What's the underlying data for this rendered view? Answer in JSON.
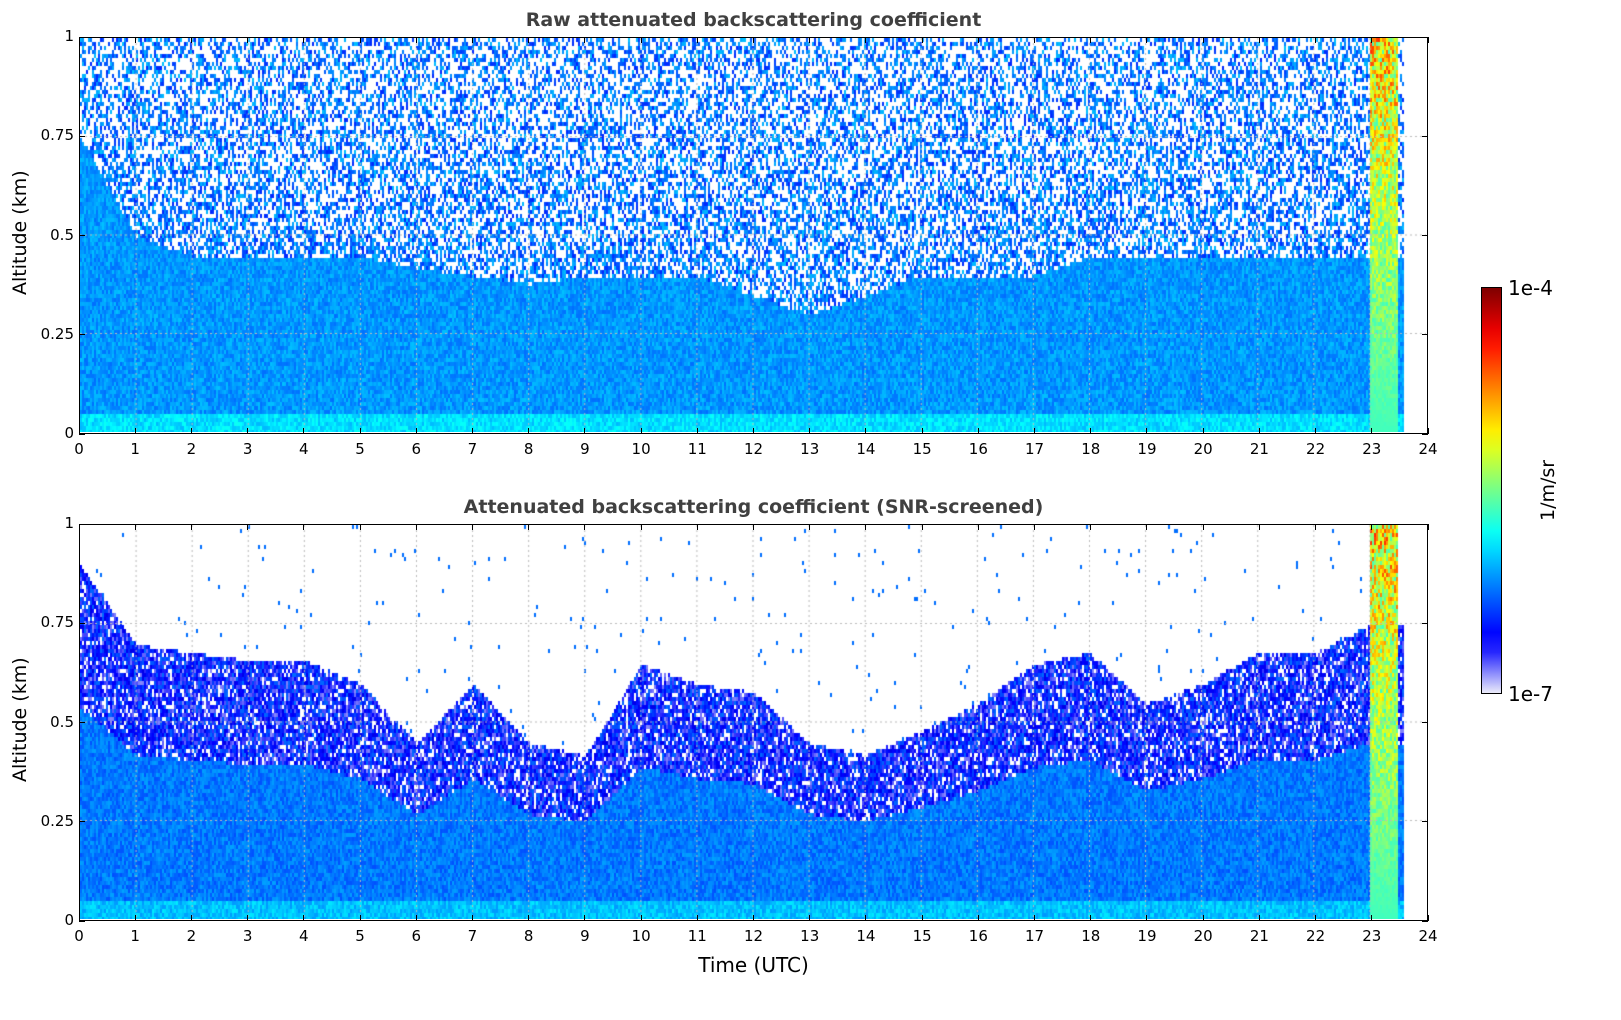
{
  "chart_data": [
    {
      "type": "heatmap",
      "title": "Raw attenuated backscattering coefficient",
      "xlabel": "",
      "ylabel": "Altitude (km)",
      "xlim": [
        0,
        24
      ],
      "ylim": [
        0,
        1
      ],
      "xticks": [
        "0",
        "1",
        "2",
        "3",
        "4",
        "5",
        "6",
        "7",
        "8",
        "9",
        "10",
        "11",
        "12",
        "13",
        "14",
        "15",
        "16",
        "17",
        "18",
        "19",
        "20",
        "21",
        "22",
        "23",
        "24"
      ],
      "yticks": [
        "0",
        "0.25",
        "0.5",
        "0.75",
        "1"
      ],
      "grid": true,
      "data_end_time": 23.6,
      "dense_signal_top_km": [
        0.75,
        0.5,
        0.45,
        0.45,
        0.45,
        0.45,
        0.42,
        0.4,
        0.38,
        0.4,
        0.4,
        0.4,
        0.35,
        0.3,
        0.35,
        0.4,
        0.4,
        0.4,
        0.45,
        0.45,
        0.45,
        0.45,
        0.45,
        0.45
      ]
    },
    {
      "type": "heatmap",
      "title": "Attenuated backscattering coefficient (SNR-screened)",
      "xlabel": "Time (UTC)",
      "ylabel": "Altitude (km)",
      "xlim": [
        0,
        24
      ],
      "ylim": [
        0,
        1
      ],
      "xticks": [
        "0",
        "1",
        "2",
        "3",
        "4",
        "5",
        "6",
        "7",
        "8",
        "9",
        "10",
        "11",
        "12",
        "13",
        "14",
        "15",
        "16",
        "17",
        "18",
        "19",
        "20",
        "21",
        "22",
        "23",
        "24"
      ],
      "yticks": [
        "0",
        "0.25",
        "0.5",
        "0.75",
        "1"
      ],
      "grid": true,
      "data_end_time": 23.6,
      "screened_signal_top_km": [
        0.9,
        0.7,
        0.68,
        0.66,
        0.66,
        0.6,
        0.45,
        0.6,
        0.45,
        0.42,
        0.65,
        0.6,
        0.58,
        0.45,
        0.42,
        0.48,
        0.55,
        0.65,
        0.68,
        0.55,
        0.6,
        0.68,
        0.68,
        0.75
      ]
    }
  ],
  "colorbar": {
    "label": "1/m/sr",
    "max_label": "1e-4",
    "min_label": "1e-7",
    "scale": "log",
    "range": [
      1e-07,
      0.0001
    ]
  }
}
